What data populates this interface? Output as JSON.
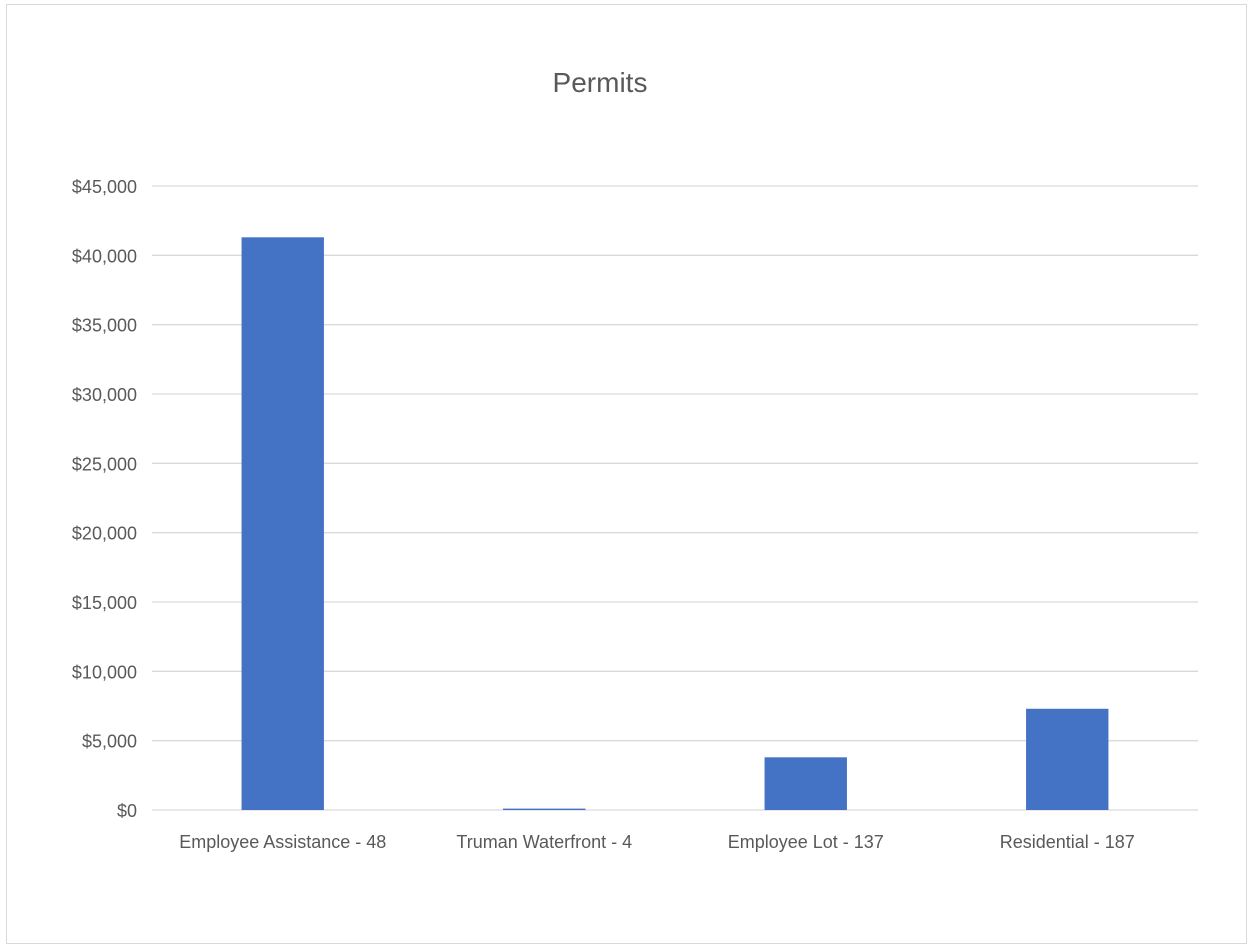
{
  "chart_data": {
    "type": "bar",
    "title": "Permits",
    "xlabel": "",
    "ylabel": "",
    "categories": [
      "Employee Assistance - 48",
      "Truman Waterfront - 4",
      "Employee Lot - 137",
      "Residential - 187"
    ],
    "values": [
      41300,
      100,
      3800,
      7300
    ],
    "ylim": [
      0,
      45000
    ],
    "yticks": [
      0,
      5000,
      10000,
      15000,
      20000,
      25000,
      30000,
      35000,
      40000,
      45000
    ],
    "ytick_labels": [
      "$0",
      "$5,000",
      "$10,000",
      "$15,000",
      "$20,000",
      "$25,000",
      "$30,000",
      "$35,000",
      "$40,000",
      "$45,000"
    ],
    "grid": true,
    "legend": "none",
    "colors": {
      "bar": "#4472c4",
      "grid": "#d9d9d9",
      "text": "#595959",
      "title": "#595959"
    }
  }
}
